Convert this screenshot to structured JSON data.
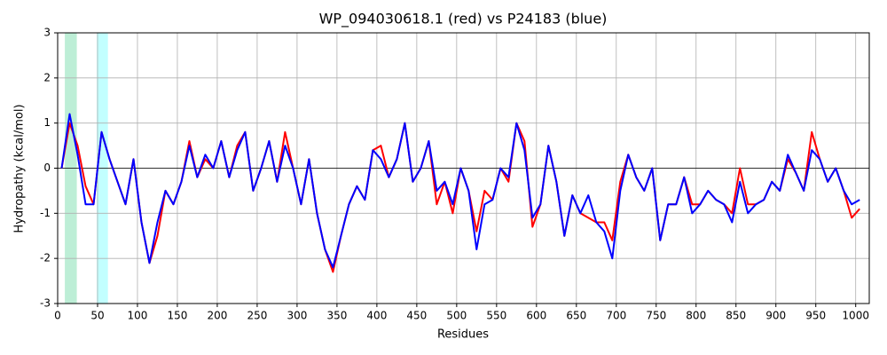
{
  "chart_data": {
    "type": "line",
    "title": "WP_094030618.1 (red) vs P24183 (blue)",
    "x_label": "Residues",
    "y_label": "Hydropathy (kcal/mol)",
    "xlim": [
      0,
      1017
    ],
    "ylim": [
      -3,
      3
    ],
    "xticks": [
      0,
      50,
      100,
      150,
      200,
      250,
      300,
      350,
      400,
      450,
      500,
      550,
      600,
      650,
      700,
      750,
      800,
      850,
      900,
      950,
      1000
    ],
    "yticks": [
      -3,
      -2,
      -1,
      0,
      1,
      2,
      3
    ],
    "grid": true,
    "hline": 0,
    "regions": [
      {
        "xmin": 9,
        "xmax": 24,
        "color": "#bdeed6"
      },
      {
        "xmin": 49,
        "xmax": 63,
        "color": "#c2ffff"
      }
    ],
    "x": [
      5,
      15,
      25,
      35,
      45,
      55,
      65,
      75,
      85,
      95,
      105,
      115,
      125,
      135,
      145,
      155,
      165,
      175,
      185,
      195,
      205,
      215,
      225,
      235,
      245,
      255,
      265,
      275,
      285,
      295,
      305,
      315,
      325,
      335,
      345,
      355,
      365,
      375,
      385,
      395,
      405,
      415,
      425,
      435,
      445,
      455,
      465,
      475,
      485,
      495,
      505,
      515,
      525,
      535,
      545,
      555,
      565,
      575,
      585,
      595,
      605,
      615,
      625,
      635,
      645,
      655,
      665,
      675,
      685,
      695,
      705,
      715,
      725,
      735,
      745,
      755,
      765,
      775,
      785,
      795,
      805,
      815,
      825,
      835,
      845,
      855,
      865,
      875,
      885,
      895,
      905,
      915,
      925,
      935,
      945,
      955,
      965,
      975,
      985,
      995,
      1005
    ],
    "series": [
      {
        "name": "WP_094030618.1",
        "color": "#ff0000",
        "values": [
          0.0,
          1.0,
          0.5,
          -0.4,
          -0.8,
          0.8,
          0.2,
          -0.3,
          -0.8,
          0.2,
          -1.2,
          -2.1,
          -1.5,
          -0.5,
          -0.8,
          -0.3,
          0.6,
          -0.2,
          0.2,
          0.0,
          0.6,
          -0.2,
          0.5,
          0.8,
          -0.5,
          0.0,
          0.6,
          -0.3,
          0.8,
          0.0,
          -0.8,
          0.2,
          -1.0,
          -1.8,
          -2.3,
          -1.5,
          -0.8,
          -0.4,
          -0.7,
          0.4,
          0.5,
          -0.2,
          0.2,
          1.0,
          -0.3,
          0.0,
          0.6,
          -0.8,
          -0.3,
          -1.0,
          0.0,
          -0.5,
          -1.4,
          -0.5,
          -0.7,
          0.0,
          -0.3,
          1.0,
          0.6,
          -1.3,
          -0.8,
          0.5,
          -0.3,
          -1.5,
          -0.6,
          -1.0,
          -1.1,
          -1.2,
          -1.2,
          -1.6,
          -0.3,
          0.3,
          -0.2,
          -0.5,
          0.0,
          -1.6,
          -0.8,
          -0.8,
          -0.2,
          -0.8,
          -0.8,
          -0.5,
          -0.7,
          -0.8,
          -1.0,
          0.0,
          -0.8,
          -0.8,
          -0.7,
          -0.3,
          -0.5,
          0.2,
          -0.1,
          -0.5,
          0.8,
          0.2,
          -0.3,
          0.0,
          -0.5,
          -1.1,
          -0.9
        ]
      },
      {
        "name": "P24183",
        "color": "#0000ff",
        "values": [
          0.0,
          1.2,
          0.3,
          -0.8,
          -0.8,
          0.8,
          0.2,
          -0.3,
          -0.8,
          0.2,
          -1.2,
          -2.1,
          -1.2,
          -0.5,
          -0.8,
          -0.3,
          0.5,
          -0.2,
          0.3,
          0.0,
          0.6,
          -0.2,
          0.4,
          0.8,
          -0.5,
          0.0,
          0.6,
          -0.3,
          0.5,
          0.0,
          -0.8,
          0.2,
          -1.0,
          -1.8,
          -2.2,
          -1.5,
          -0.8,
          -0.4,
          -0.7,
          0.4,
          0.2,
          -0.2,
          0.2,
          1.0,
          -0.3,
          0.0,
          0.6,
          -0.5,
          -0.3,
          -0.8,
          0.0,
          -0.5,
          -1.8,
          -0.8,
          -0.7,
          0.0,
          -0.2,
          1.0,
          0.4,
          -1.1,
          -0.8,
          0.5,
          -0.3,
          -1.5,
          -0.6,
          -1.0,
          -0.6,
          -1.2,
          -1.4,
          -2.0,
          -0.5,
          0.3,
          -0.2,
          -0.5,
          0.0,
          -1.6,
          -0.8,
          -0.8,
          -0.2,
          -1.0,
          -0.8,
          -0.5,
          -0.7,
          -0.8,
          -1.2,
          -0.3,
          -1.0,
          -0.8,
          -0.7,
          -0.3,
          -0.5,
          0.3,
          -0.1,
          -0.5,
          0.4,
          0.2,
          -0.3,
          0.0,
          -0.5,
          -0.8,
          -0.7
        ]
      }
    ]
  }
}
